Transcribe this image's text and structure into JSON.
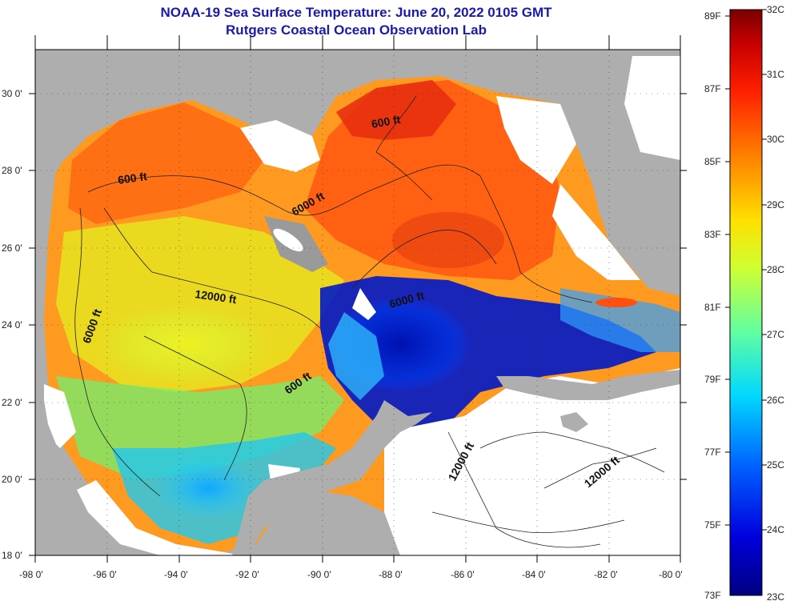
{
  "title": "NOAA-19 Sea Surface Temperature:  June 20, 2022 0105 GMT",
  "subtitle": "Rutgers Coastal Ocean Observation Lab",
  "axes": {
    "lon_ticks": [
      "-98 0'",
      "-96 0'",
      "-94 0'",
      "-92 0'",
      "-90 0'",
      "-88 0'",
      "-86 0'",
      "-84 0'",
      "-82 0'",
      "-80 0'"
    ],
    "lat_ticks": [
      "30 0'",
      "28 0'",
      "26 0'",
      "24 0'",
      "22 0'",
      "20 0'",
      "18 0'"
    ],
    "lon_range": [
      -98,
      -80
    ],
    "lat_range": [
      18,
      31.2
    ]
  },
  "contour_labels": [
    "600 ft",
    "600 ft",
    "6000 ft",
    "12000 ft",
    "6000 ft",
    "6000 ft",
    "600 ft",
    "12000 ft",
    "12000 ft"
  ],
  "colorbar": {
    "fahrenheit": [
      "89F",
      "87F",
      "85F",
      "83F",
      "81F",
      "79F",
      "77F",
      "75F",
      "73F"
    ],
    "celsius": [
      "32C",
      "31C",
      "30C",
      "29C",
      "28C",
      "27C",
      "26C",
      "25C",
      "24C",
      "23C"
    ],
    "range_c": [
      23,
      32
    ]
  },
  "colors": {
    "land": "#aeaeae",
    "cloud": "#ffffff",
    "title": "#1a1aaa"
  }
}
